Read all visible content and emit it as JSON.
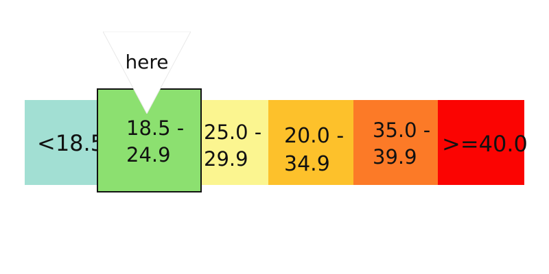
{
  "colors": {
    "underweight": "#a2dfd3",
    "normal": "#8ce070",
    "overweight": "#fbf590",
    "obese_1": "#fdc12b",
    "obese_2": "#fc7a27",
    "obese_3": "#fb0402",
    "outline": "#111111"
  },
  "categories": [
    {
      "label": "<18.5",
      "color": "#a2dfd3"
    },
    {
      "label": "18.5 -\n24.9",
      "color": "#8ce070"
    },
    {
      "label": "25.0 -\n29.9",
      "color": "#fbf590"
    },
    {
      "label": "20.0 -\n34.9",
      "color": "#fdc12b"
    },
    {
      "label": "35.0 -\n39.9",
      "color": "#fc7a27"
    },
    {
      "label": ">=40.0",
      "color": "#fb0402"
    }
  ],
  "selected_index": 1,
  "pointer": {
    "label": "here",
    "icon": "downward-triangle-pointer-icon"
  }
}
